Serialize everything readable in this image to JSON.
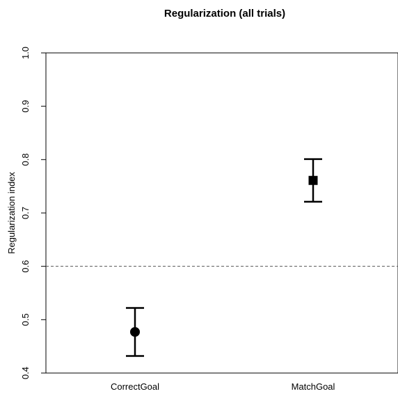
{
  "chart_data": {
    "type": "scatter",
    "title": "Regularization (all trials)",
    "xlabel": "",
    "ylabel": "Regularization index",
    "categories": [
      "CorrectGoal",
      "MatchGoal"
    ],
    "series": [
      {
        "points": [
          {
            "category": "CorrectGoal",
            "y": 0.477,
            "lower": 0.432,
            "upper": 0.522,
            "marker": "circle"
          },
          {
            "category": "MatchGoal",
            "y": 0.761,
            "lower": 0.721,
            "upper": 0.801,
            "marker": "square"
          }
        ]
      }
    ],
    "ylim": [
      0.4,
      1.0
    ],
    "yticks": [
      0.4,
      0.5,
      0.6,
      0.7,
      0.8,
      0.9,
      1.0
    ],
    "ytick_labels": [
      "0.4",
      "0.5",
      "0.6",
      "0.7",
      "0.8",
      "0.9",
      "1.0"
    ],
    "reference_line": {
      "y": 0.6,
      "style": "dashed"
    },
    "grid": false,
    "legend": "none",
    "colors": {
      "marks": "#000000",
      "reference": "#555555"
    }
  }
}
